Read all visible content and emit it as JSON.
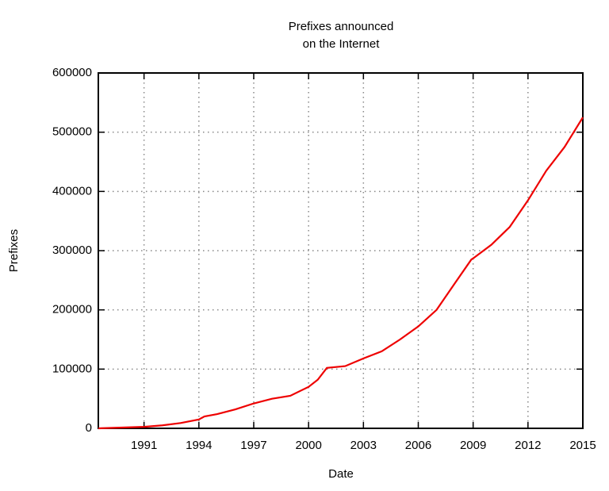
{
  "chart_data": {
    "type": "line",
    "title": [
      "Prefixes announced",
      "on the Internet"
    ],
    "xlabel": "Date",
    "ylabel": "Prefixes",
    "x": [
      1988.5,
      1990,
      1991,
      1992,
      1993,
      1994,
      1994.3,
      1995,
      1996,
      1997,
      1998,
      1999,
      2000,
      2000.5,
      2001,
      2002,
      2003,
      2004,
      2005,
      2006,
      2007,
      2008,
      2008.9,
      2009,
      2010,
      2011,
      2012,
      2013,
      2014,
      2014.5,
      2015
    ],
    "series": [
      {
        "name": "Prefixes",
        "color": "#ee0000",
        "values": [
          0,
          1500,
          2500,
          5000,
          9000,
          15000,
          20000,
          24000,
          32000,
          42000,
          50000,
          55000,
          70000,
          82000,
          102000,
          105000,
          118000,
          130000,
          150000,
          172000,
          200000,
          245000,
          285000,
          287000,
          310000,
          340000,
          385000,
          435000,
          475000,
          500000,
          525000
        ]
      }
    ],
    "xlim": [
      1988.5,
      2015
    ],
    "xticks": [
      1991,
      1994,
      1997,
      2000,
      2003,
      2006,
      2009,
      2012,
      2015
    ],
    "ylim": [
      0,
      600000
    ],
    "yticks": [
      0,
      100000,
      200000,
      300000,
      400000,
      500000,
      600000
    ],
    "grid": true
  }
}
